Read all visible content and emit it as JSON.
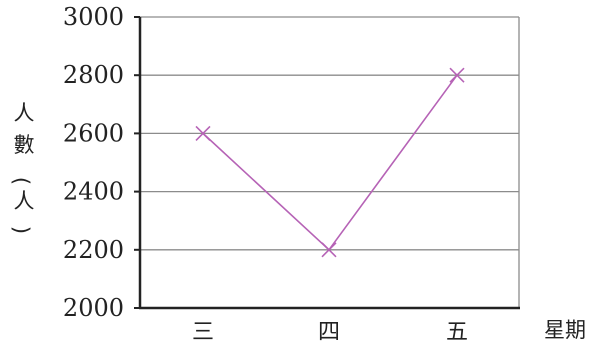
{
  "chart_data": {
    "type": "line",
    "categories": [
      "三",
      "四",
      "五"
    ],
    "series": [
      {
        "values": [
          2600,
          2200,
          2800
        ]
      }
    ],
    "ylabel_chars": [
      "人",
      "數",
      "(",
      "人",
      ")"
    ],
    "xlabel": "星期",
    "ylim": [
      2000,
      3000
    ],
    "yticks": [
      "3000",
      "2800",
      "2600",
      "2400",
      "2200",
      "2000"
    ],
    "grid": true,
    "line_color": "#b663b6",
    "grid_color": "#8c8c8c",
    "axis_color": "#222222"
  }
}
